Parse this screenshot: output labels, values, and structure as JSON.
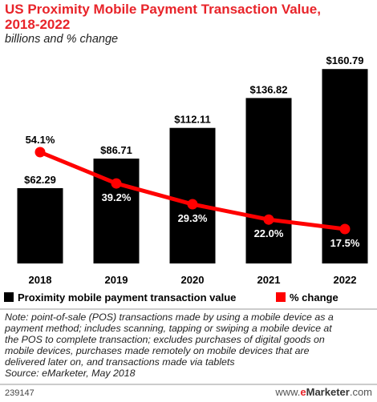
{
  "title": {
    "line1": "US Proximity Mobile Payment Transaction Value,",
    "line2": "2018-2022"
  },
  "subtitle": "billions and % change",
  "chart_data": {
    "type": "bar",
    "categories": [
      "2018",
      "2019",
      "2020",
      "2021",
      "2022"
    ],
    "series": [
      {
        "name": "Proximity mobile payment transaction value",
        "type": "bar",
        "color": "#000000",
        "values": [
          62.29,
          86.71,
          112.11,
          136.82,
          160.79
        ],
        "labels": [
          "$62.29",
          "$86.71",
          "$112.11",
          "$136.82",
          "$160.79"
        ]
      },
      {
        "name": "% change",
        "type": "line",
        "color": "#ff0000",
        "values": [
          54.1,
          39.2,
          29.3,
          22.0,
          17.5
        ],
        "labels": [
          "54.1%",
          "39.2%",
          "29.3%",
          "22.0%",
          "17.5%"
        ]
      }
    ],
    "legend_position": "bottom"
  },
  "note": {
    "lines": [
      "Note: point-of-sale (POS) transactions made by using a mobile device as a",
      "payment method; includes scanning, tapping or swiping a mobile device at",
      "the POS to complete transaction; excludes purchases of digital goods on",
      "mobile devices, purchases made remotely on mobile devices that are",
      "delivered later on, and transactions made via tablets"
    ],
    "source": "Source: eMarketer, May 2018"
  },
  "footer": {
    "chart_id": "239147",
    "brand_prefix": "www.",
    "brand_e": "e",
    "brand_marketer": "Marketer",
    "brand_suffix": ".com"
  }
}
